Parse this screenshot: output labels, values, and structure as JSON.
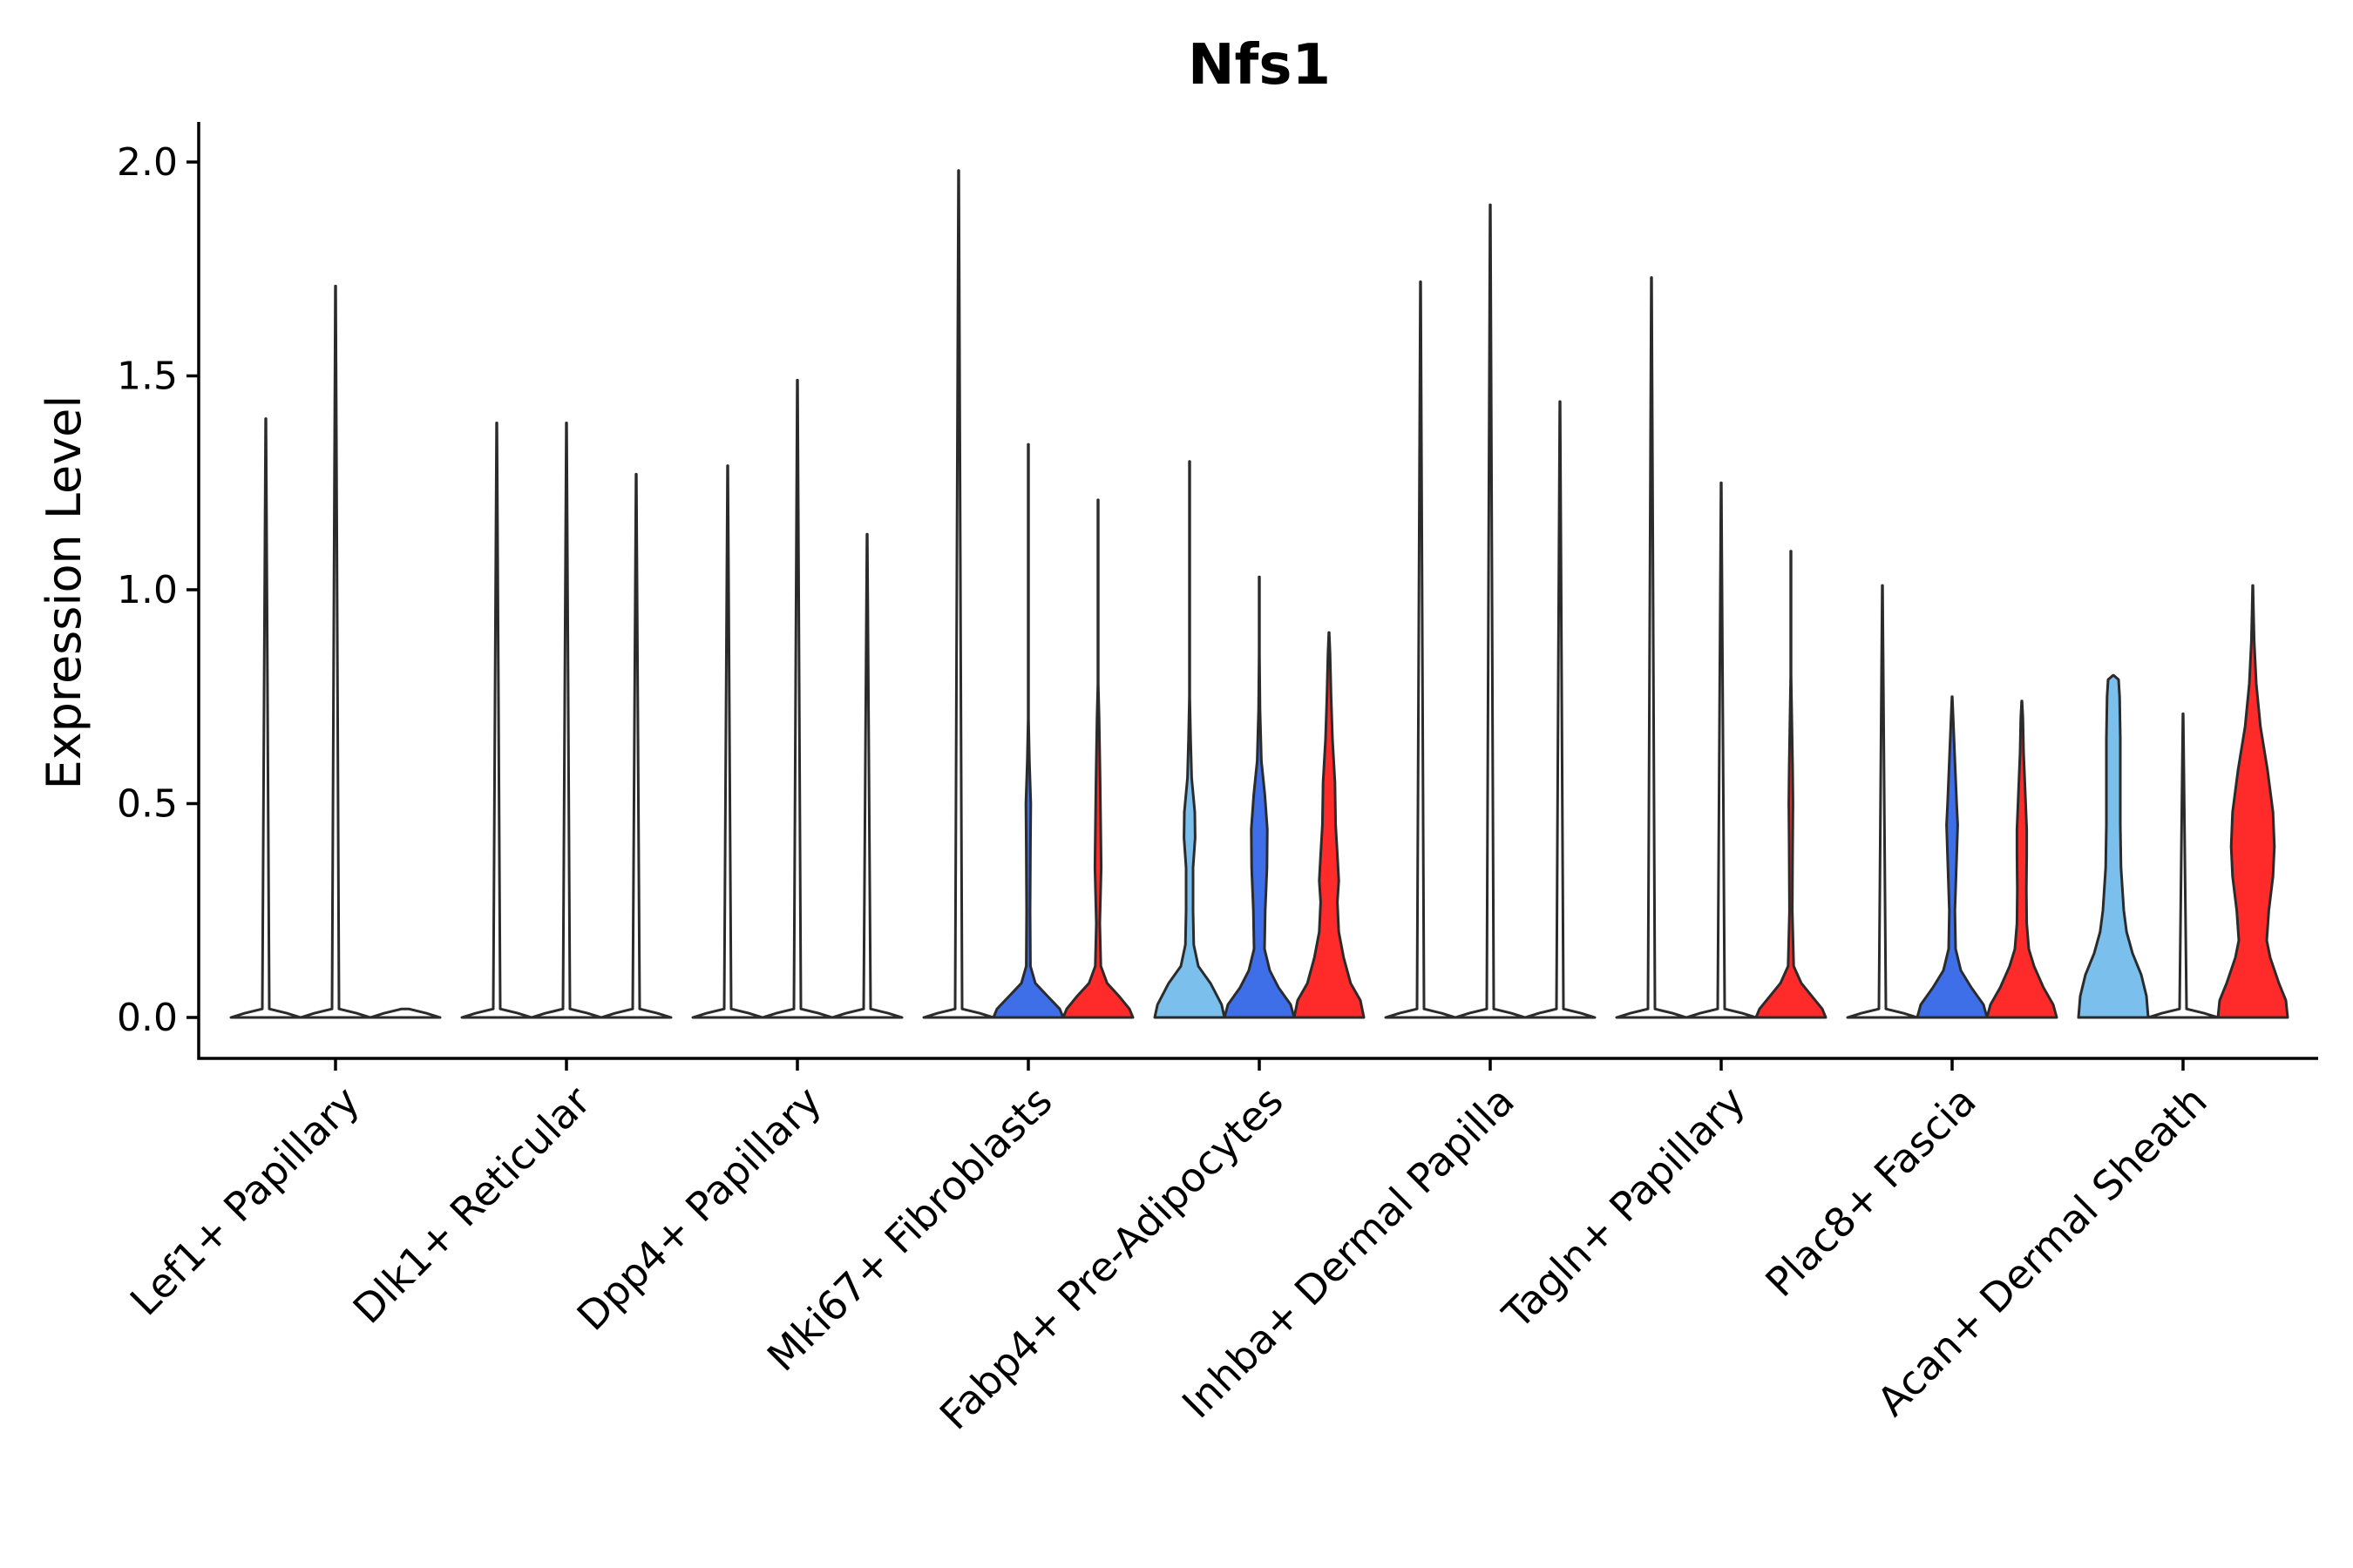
{
  "chart_data": {
    "type": "violin",
    "title": "Nfs1",
    "xlabel": "",
    "ylabel": "Expression Level",
    "ylim": [
      -0.1,
      2.08
    ],
    "yticks": [
      "0.0",
      "0.5",
      "1.0",
      "1.5",
      "2.0"
    ],
    "colors": {
      "none": "#ffffff",
      "blue": "#3f6fe8",
      "red": "#ff2b2b",
      "lightblue": "#7bbfec"
    },
    "categories": [
      "Lef1+ Papillary",
      "Dlk1+ Reticular",
      "Dpp4+ Papillary",
      "Mki67+ Fibroblasts",
      "Fabp4+ Pre-Adipocytes",
      "Inhba+ Dermal Papilla",
      "Tagln+ Papillary",
      "Plac8+ Fascia",
      "Acan+ Dermal Sheath"
    ],
    "groups": [
      [
        {
          "color": "none",
          "max": 1.4,
          "width": 0.006,
          "body": []
        },
        {
          "color": "none",
          "max": 1.71,
          "width": 0.006,
          "body": []
        },
        {
          "color": "none",
          "max": 0.0,
          "width": 0.006,
          "body": []
        }
      ],
      [
        {
          "color": "none",
          "max": 1.39,
          "width": 0.006,
          "body": []
        },
        {
          "color": "none",
          "max": 1.39,
          "width": 0.006,
          "body": []
        },
        {
          "color": "none",
          "max": 1.27,
          "width": 0.006,
          "body": []
        }
      ],
      [
        {
          "color": "none",
          "max": 1.29,
          "width": 0.006,
          "body": []
        },
        {
          "color": "none",
          "max": 1.49,
          "width": 0.006,
          "body": []
        },
        {
          "color": "none",
          "max": 1.13,
          "width": 0.006,
          "body": []
        }
      ],
      [
        {
          "color": "none",
          "max": 1.98,
          "width": 0.006,
          "body": []
        },
        {
          "color": "blue",
          "max": 1.34,
          "width": 0.006,
          "body": [
            [
              0.0,
              1.0
            ],
            [
              0.02,
              0.9
            ],
            [
              0.05,
              0.55
            ],
            [
              0.08,
              0.2
            ],
            [
              0.12,
              0.06
            ],
            [
              0.25,
              0.05
            ],
            [
              0.4,
              0.06
            ],
            [
              0.5,
              0.07
            ],
            [
              0.6,
              0.03
            ],
            [
              0.7,
              0.006
            ]
          ]
        },
        {
          "color": "red",
          "max": 1.21,
          "width": 0.006,
          "body": [
            [
              0.0,
              1.0
            ],
            [
              0.02,
              0.9
            ],
            [
              0.05,
              0.6
            ],
            [
              0.08,
              0.26
            ],
            [
              0.12,
              0.08
            ],
            [
              0.22,
              0.05
            ],
            [
              0.35,
              0.09
            ],
            [
              0.42,
              0.08
            ],
            [
              0.55,
              0.06
            ],
            [
              0.7,
              0.03
            ],
            [
              0.78,
              0.006
            ]
          ]
        }
      ],
      [
        {
          "color": "lightblue",
          "max": 1.3,
          "width": 0.006,
          "body": [
            [
              0.0,
              1.0
            ],
            [
              0.03,
              0.92
            ],
            [
              0.08,
              0.6
            ],
            [
              0.12,
              0.25
            ],
            [
              0.17,
              0.12
            ],
            [
              0.25,
              0.1
            ],
            [
              0.35,
              0.1
            ],
            [
              0.42,
              0.16
            ],
            [
              0.48,
              0.15
            ],
            [
              0.56,
              0.06
            ],
            [
              0.65,
              0.03
            ],
            [
              0.75,
              0.006
            ]
          ]
        },
        {
          "color": "blue",
          "max": 1.03,
          "width": 0.006,
          "body": [
            [
              0.0,
              1.0
            ],
            [
              0.03,
              0.9
            ],
            [
              0.07,
              0.55
            ],
            [
              0.11,
              0.3
            ],
            [
              0.16,
              0.15
            ],
            [
              0.25,
              0.17
            ],
            [
              0.35,
              0.22
            ],
            [
              0.44,
              0.23
            ],
            [
              0.52,
              0.16
            ],
            [
              0.6,
              0.06
            ],
            [
              0.72,
              0.02
            ],
            [
              0.85,
              0.006
            ]
          ]
        },
        {
          "color": "red",
          "max": 0.9,
          "width": 0.006,
          "body": [
            [
              0.0,
              1.0
            ],
            [
              0.04,
              0.9
            ],
            [
              0.08,
              0.62
            ],
            [
              0.14,
              0.42
            ],
            [
              0.2,
              0.28
            ],
            [
              0.27,
              0.24
            ],
            [
              0.32,
              0.28
            ],
            [
              0.38,
              0.24
            ],
            [
              0.45,
              0.19
            ],
            [
              0.55,
              0.17
            ],
            [
              0.65,
              0.1
            ],
            [
              0.75,
              0.06
            ],
            [
              0.85,
              0.03
            ],
            [
              0.9,
              0.006
            ]
          ]
        }
      ],
      [
        {
          "color": "none",
          "max": 1.72,
          "width": 0.006,
          "body": []
        },
        {
          "color": "none",
          "max": 1.9,
          "width": 0.006,
          "body": []
        },
        {
          "color": "none",
          "max": 1.44,
          "width": 0.006,
          "body": []
        }
      ],
      [
        {
          "color": "none",
          "max": 1.73,
          "width": 0.006,
          "body": []
        },
        {
          "color": "none",
          "max": 1.25,
          "width": 0.006,
          "body": []
        },
        {
          "color": "red",
          "max": 1.09,
          "width": 0.006,
          "body": [
            [
              0.0,
              1.0
            ],
            [
              0.02,
              0.9
            ],
            [
              0.05,
              0.6
            ],
            [
              0.08,
              0.3
            ],
            [
              0.12,
              0.08
            ],
            [
              0.25,
              0.04
            ],
            [
              0.4,
              0.05
            ],
            [
              0.5,
              0.06
            ],
            [
              0.58,
              0.05
            ],
            [
              0.68,
              0.03
            ],
            [
              0.8,
              0.006
            ]
          ]
        }
      ],
      [
        {
          "color": "none",
          "max": 1.01,
          "width": 0.006,
          "body": []
        },
        {
          "color": "blue",
          "max": 0.75,
          "width": 0.006,
          "body": [
            [
              0.0,
              1.0
            ],
            [
              0.03,
              0.9
            ],
            [
              0.07,
              0.55
            ],
            [
              0.11,
              0.25
            ],
            [
              0.16,
              0.1
            ],
            [
              0.25,
              0.08
            ],
            [
              0.35,
              0.12
            ],
            [
              0.45,
              0.16
            ],
            [
              0.5,
              0.13
            ],
            [
              0.58,
              0.09
            ],
            [
              0.66,
              0.05
            ],
            [
              0.72,
              0.02
            ],
            [
              0.75,
              0.006
            ]
          ]
        },
        {
          "color": "red",
          "max": 0.74,
          "width": 0.006,
          "body": [
            [
              0.0,
              1.0
            ],
            [
              0.03,
              0.9
            ],
            [
              0.07,
              0.62
            ],
            [
              0.12,
              0.35
            ],
            [
              0.16,
              0.2
            ],
            [
              0.22,
              0.14
            ],
            [
              0.3,
              0.13
            ],
            [
              0.38,
              0.14
            ],
            [
              0.44,
              0.14
            ],
            [
              0.52,
              0.1
            ],
            [
              0.62,
              0.05
            ],
            [
              0.7,
              0.03
            ],
            [
              0.74,
              0.006
            ]
          ]
        }
      ],
      [
        {
          "color": "lightblue",
          "max": 0.8,
          "width": 0.006,
          "body": [
            [
              0.0,
              1.0
            ],
            [
              0.05,
              0.95
            ],
            [
              0.1,
              0.8
            ],
            [
              0.15,
              0.55
            ],
            [
              0.2,
              0.38
            ],
            [
              0.25,
              0.3
            ],
            [
              0.35,
              0.22
            ],
            [
              0.45,
              0.2
            ],
            [
              0.55,
              0.2
            ],
            [
              0.65,
              0.2
            ],
            [
              0.75,
              0.18
            ],
            [
              0.79,
              0.15
            ],
            [
              0.8,
              0.006
            ]
          ]
        },
        {
          "color": "none",
          "max": 0.71,
          "width": 0.006,
          "body": []
        },
        {
          "color": "red",
          "max": 1.01,
          "width": 0.006,
          "body": [
            [
              0.0,
              1.0
            ],
            [
              0.04,
              0.95
            ],
            [
              0.08,
              0.75
            ],
            [
              0.14,
              0.5
            ],
            [
              0.18,
              0.4
            ],
            [
              0.25,
              0.46
            ],
            [
              0.33,
              0.58
            ],
            [
              0.4,
              0.62
            ],
            [
              0.48,
              0.58
            ],
            [
              0.58,
              0.42
            ],
            [
              0.68,
              0.22
            ],
            [
              0.78,
              0.1
            ],
            [
              0.88,
              0.04
            ],
            [
              0.95,
              0.02
            ],
            [
              1.01,
              0.006
            ]
          ]
        }
      ]
    ]
  }
}
